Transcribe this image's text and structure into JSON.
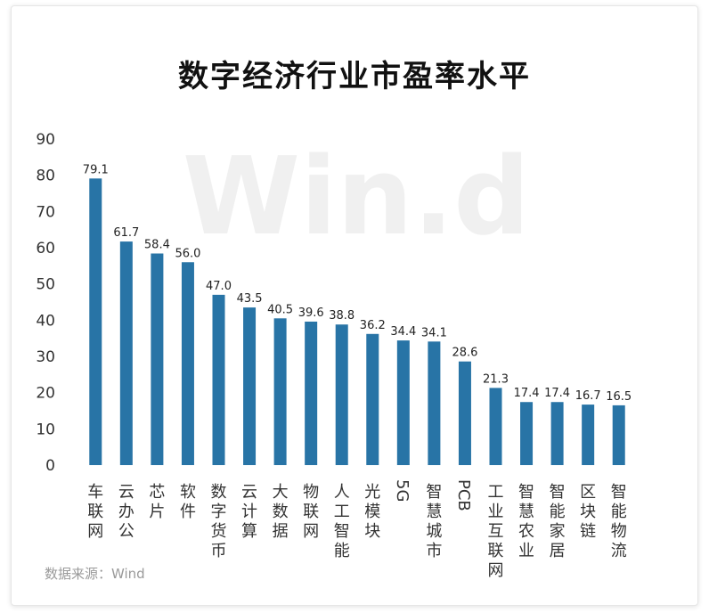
{
  "chart_data": {
    "type": "bar",
    "title": "数字经济行业市盈率水平",
    "categories": [
      "车联网",
      "云办公",
      "芯片",
      "软件",
      "数字货币",
      "云计算",
      "大数据",
      "物联网",
      "人工智能",
      "光模块",
      "5G",
      "智慧城市",
      "PCB",
      "工业互联网",
      "智慧农业",
      "智能家居",
      "区块链",
      "智能物流"
    ],
    "values": [
      79.1,
      61.7,
      58.4,
      56.0,
      47.0,
      43.5,
      40.5,
      39.6,
      38.8,
      36.2,
      34.4,
      34.1,
      28.6,
      21.3,
      17.4,
      17.4,
      16.7,
      16.5
    ],
    "value_labels": [
      "79.1",
      "61.7",
      "58.4",
      "56.0",
      "47.0",
      "43.5",
      "40.5",
      "39.6",
      "38.8",
      "36.2",
      "34.4",
      "34.1",
      "28.6",
      "21.3",
      "17.4",
      "17.4",
      "16.7",
      "16.5"
    ],
    "yticks": [
      "0",
      "10",
      "20",
      "30",
      "40",
      "50",
      "60",
      "70",
      "80",
      "90"
    ],
    "ylim": [
      0,
      90
    ],
    "grid": false,
    "bar_color": "#2874a6",
    "xlabel": "",
    "ylabel": ""
  },
  "source_text": "数据来源：Wind",
  "watermark_text": "Win.d"
}
